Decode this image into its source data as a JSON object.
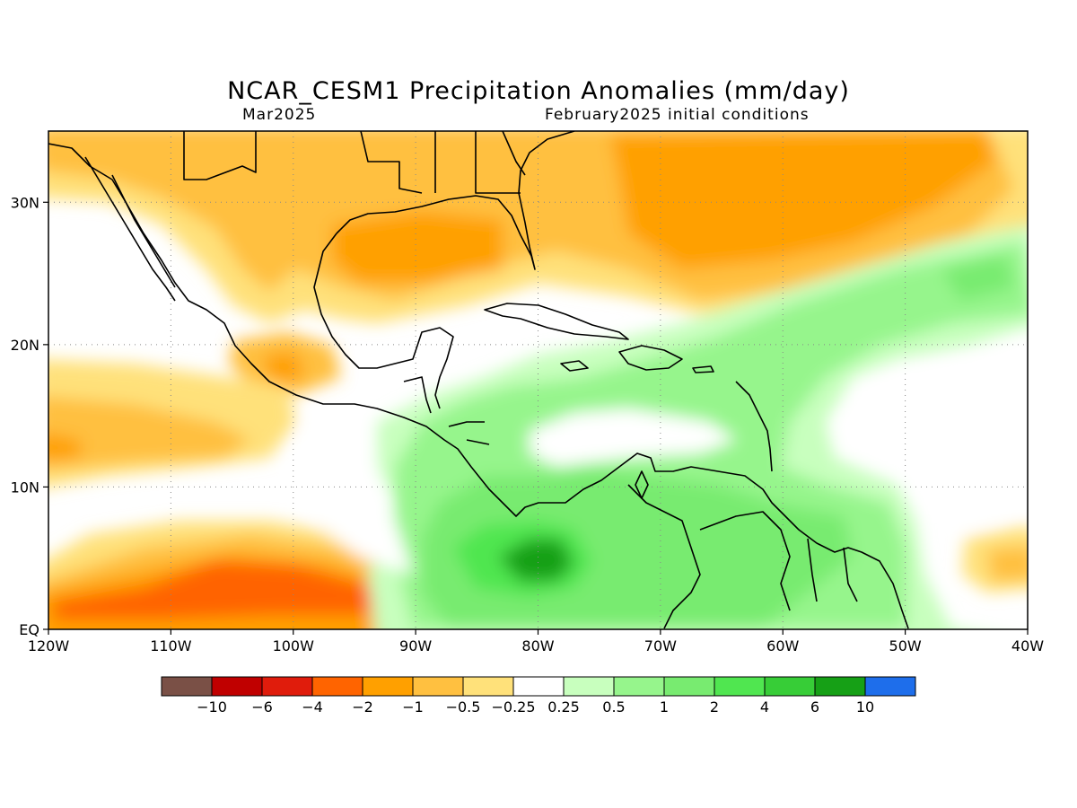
{
  "title": "NCAR_CESM1 Precipitation Anomalies (mm/day)",
  "subtitle_left": "Mar2025",
  "subtitle_right": "February2025 initial conditions",
  "map": {
    "lon_ticks": [
      "120W",
      "110W",
      "100W",
      "90W",
      "80W",
      "70W",
      "60W",
      "50W",
      "40W"
    ],
    "lat_ticks": [
      "EQ",
      "10N",
      "20N",
      "30N"
    ],
    "extent": {
      "lon": [
        -120,
        -40
      ],
      "lat": [
        0,
        35
      ]
    },
    "grid": "dotted"
  },
  "colorbar": {
    "colors": [
      "#7a5046",
      "#c00000",
      "#e01c0c",
      "#ff6400",
      "#ffa000",
      "#ffc040",
      "#ffe17a",
      "#ffffff",
      "#c8ffbe",
      "#96f58c",
      "#78eb70",
      "#50e650",
      "#37cd37",
      "#16a016",
      "#1e6eeb"
    ],
    "labels": [
      "-10",
      "-6",
      "-4",
      "-2",
      "-1",
      "-0.5",
      "-0.25",
      "0.25",
      "0.5",
      "1",
      "2",
      "4",
      "6",
      "10"
    ]
  },
  "anomaly_colors": {
    "dry_light": "#ffe17a",
    "dry": "#ffc040",
    "dry_mid": "#ffa000",
    "dry_strong": "#ff6400",
    "wet_light": "#c8ffbe",
    "wet": "#96f58c",
    "wet_mid": "#78eb70",
    "wet_strong": "#50e650",
    "wet_max": "#16a016"
  }
}
